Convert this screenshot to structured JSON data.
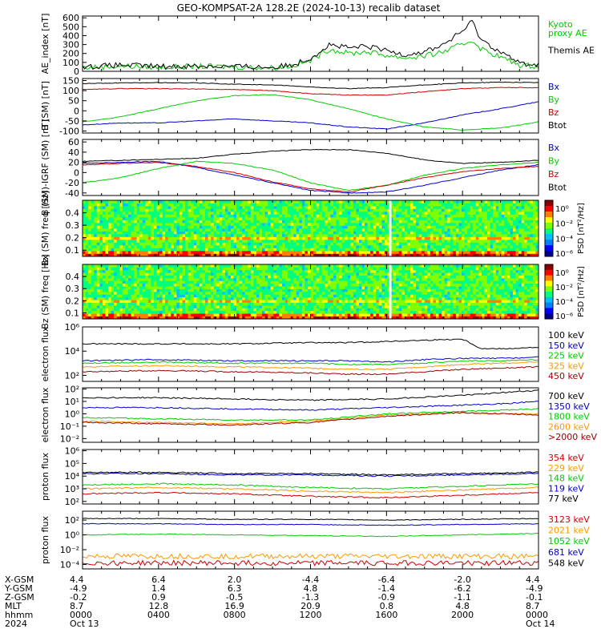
{
  "title": "GEO-KOMPSAT-2A 128.2E (2024-10-13) recalib dataset",
  "chart_data": [
    {
      "type": "line",
      "id": "ae",
      "ylabel": "AE_index [nT]",
      "yticks": [
        "0",
        "100",
        "200",
        "300",
        "400",
        "500",
        "600"
      ],
      "ylim": [
        0,
        620
      ],
      "series": [
        {
          "name": "Kyoto proxy AE",
          "color": "#00cc00",
          "label_lines": [
            "Kyoto",
            "proxy AE"
          ],
          "x": [
            0,
            2,
            4,
            6,
            8,
            10,
            11,
            12,
            13,
            14,
            15,
            16,
            17,
            18,
            19,
            20,
            20.5,
            21,
            22,
            23,
            24
          ],
          "values": [
            40,
            60,
            45,
            55,
            50,
            40,
            60,
            120,
            250,
            200,
            220,
            180,
            150,
            170,
            220,
            300,
            350,
            250,
            160,
            70,
            60
          ]
        },
        {
          "name": "Themis AE",
          "color": "#000000",
          "label_lines": [
            "Themis AE"
          ],
          "x": [
            0,
            2,
            4,
            6,
            8,
            10,
            11,
            12,
            13,
            14,
            15,
            16,
            17,
            18,
            19,
            20,
            20.5,
            21,
            22,
            23,
            24
          ],
          "values": [
            50,
            70,
            55,
            60,
            55,
            45,
            70,
            150,
            300,
            260,
            280,
            230,
            190,
            220,
            300,
            450,
            560,
            350,
            220,
            90,
            70
          ]
        }
      ]
    },
    {
      "type": "line",
      "id": "bsm",
      "ylabel": "B (SM) [nT]",
      "yticks": [
        "-100",
        "-50",
        "0",
        "50",
        "100",
        "150"
      ],
      "ylim": [
        -110,
        160
      ],
      "series": [
        {
          "name": "Bx",
          "color": "#0000cc",
          "x": [
            0,
            2,
            4,
            6,
            8,
            10,
            12,
            14,
            16,
            18,
            20,
            22,
            24
          ],
          "values": [
            -70,
            -60,
            -60,
            -50,
            -40,
            -50,
            -60,
            -80,
            -90,
            -60,
            -20,
            10,
            45
          ]
        },
        {
          "name": "By",
          "color": "#00cc00",
          "x": [
            0,
            2,
            4,
            6,
            8,
            10,
            12,
            14,
            16,
            18,
            20,
            22,
            24
          ],
          "values": [
            -55,
            -30,
            10,
            50,
            75,
            80,
            55,
            10,
            -40,
            -80,
            -95,
            -85,
            -55
          ]
        },
        {
          "name": "Bz",
          "color": "#cc0000",
          "x": [
            0,
            2,
            4,
            6,
            8,
            10,
            12,
            14,
            16,
            18,
            20,
            22,
            24
          ],
          "values": [
            105,
            110,
            110,
            108,
            105,
            100,
            85,
            78,
            78,
            95,
            110,
            115,
            115
          ]
        },
        {
          "name": "Btot",
          "color": "#000000",
          "x": [
            0,
            2,
            4,
            6,
            8,
            10,
            12,
            14,
            16,
            18,
            20,
            22,
            24
          ],
          "values": [
            135,
            138,
            140,
            138,
            132,
            128,
            118,
            110,
            115,
            128,
            138,
            142,
            140
          ]
        }
      ]
    },
    {
      "type": "line",
      "id": "dbsm",
      "ylabel": "B (SM)-IGRF (SM) [nT]",
      "yticks": [
        "-40",
        "-20",
        "0",
        "20",
        "40",
        "60"
      ],
      "ylim": [
        -45,
        65
      ],
      "series": [
        {
          "name": "Bx",
          "color": "#0000cc",
          "x": [
            0,
            2,
            4,
            6,
            8,
            10,
            12,
            14,
            16,
            18,
            20,
            22,
            24
          ],
          "values": [
            18,
            20,
            22,
            10,
            -5,
            -20,
            -35,
            -40,
            -38,
            -25,
            -10,
            5,
            15
          ]
        },
        {
          "name": "By",
          "color": "#00cc00",
          "x": [
            0,
            2,
            4,
            6,
            8,
            10,
            12,
            14,
            16,
            18,
            20,
            22,
            24
          ],
          "values": [
            -20,
            -10,
            8,
            22,
            18,
            5,
            -20,
            -35,
            -25,
            -5,
            8,
            15,
            20
          ]
        },
        {
          "name": "Bz",
          "color": "#cc0000",
          "x": [
            0,
            2,
            4,
            6,
            8,
            10,
            12,
            14,
            16,
            18,
            20,
            22,
            24
          ],
          "values": [
            15,
            18,
            20,
            12,
            0,
            -18,
            -32,
            -38,
            -25,
            -10,
            2,
            8,
            12
          ]
        },
        {
          "name": "Btot",
          "color": "#000000",
          "x": [
            0,
            2,
            4,
            6,
            8,
            10,
            12,
            14,
            16,
            18,
            20,
            22,
            24
          ],
          "values": [
            22,
            24,
            26,
            28,
            36,
            42,
            45,
            45,
            38,
            25,
            18,
            20,
            24
          ]
        }
      ]
    },
    {
      "type": "heatmap",
      "id": "bx_spec",
      "ylabel": "Bx (SM) freq [Hz]",
      "yticks": [
        "0.1",
        "0.2",
        "0.3",
        "0.4"
      ],
      "ylim": [
        0.05,
        0.5
      ],
      "colorbar_label": "PSD [nT²/Hz]",
      "colorbar_ticks": [
        "10⁰",
        "10⁻²",
        "10⁻⁴",
        "10⁻⁶"
      ],
      "gap_hour": 16.2
    },
    {
      "type": "heatmap",
      "id": "bz_spec",
      "ylabel": "Bz (SM) freq [Hz]",
      "yticks": [
        "0.1",
        "0.2",
        "0.3",
        "0.4"
      ],
      "ylim": [
        0.05,
        0.5
      ],
      "colorbar_label": "PSD [nT²/Hz]",
      "colorbar_ticks": [
        "10⁰",
        "10⁻²",
        "10⁻⁴",
        "10⁻⁶"
      ],
      "gap_hour": 16.2
    },
    {
      "type": "line",
      "id": "elec_low",
      "ylabel": "electron flux",
      "log": true,
      "yticks": [
        "10²",
        "10⁴",
        "10⁶"
      ],
      "ylim_exp": [
        1.5,
        6
      ],
      "series": [
        {
          "name": "100 keV",
          "color": "#000000",
          "x": [
            0,
            4,
            8,
            12,
            14,
            16,
            18,
            20,
            21,
            22,
            24
          ],
          "values": [
            4.6,
            4.6,
            4.6,
            4.7,
            4.7,
            4.8,
            4.9,
            5.0,
            4.2,
            4.2,
            4.3
          ]
        },
        {
          "name": "150 keV",
          "color": "#0000cc",
          "x": [
            0,
            4,
            8,
            12,
            14,
            16,
            18,
            20,
            22,
            24
          ],
          "values": [
            3.2,
            3.3,
            3.2,
            3.2,
            3.2,
            3.1,
            3.3,
            3.4,
            3.4,
            3.5
          ]
        },
        {
          "name": "225 keV",
          "color": "#00cc00",
          "x": [
            0,
            4,
            8,
            12,
            14,
            16,
            18,
            20,
            22,
            24
          ],
          "values": [
            3.0,
            3.1,
            3.0,
            3.0,
            2.9,
            2.9,
            3.0,
            3.2,
            3.2,
            3.3
          ]
        },
        {
          "name": "325 keV",
          "color": "#ff9900",
          "x": [
            0,
            4,
            8,
            12,
            14,
            16,
            18,
            20,
            22,
            24
          ],
          "values": [
            2.7,
            2.8,
            2.7,
            2.6,
            2.5,
            2.5,
            2.7,
            2.9,
            3.0,
            3.1
          ]
        },
        {
          "name": "450 keV",
          "color": "#990000",
          "x": [
            0,
            4,
            8,
            12,
            14,
            16,
            18,
            20,
            22,
            24
          ],
          "values": [
            2.3,
            2.4,
            2.3,
            2.2,
            2.1,
            2.1,
            2.3,
            2.5,
            2.6,
            2.7
          ]
        }
      ]
    },
    {
      "type": "line",
      "id": "elec_high",
      "ylabel": "electron flux",
      "log": true,
      "yticks": [
        "10⁻²",
        "10⁻¹",
        "10⁰",
        "10¹",
        "10²"
      ],
      "ylim_exp": [
        -2.3,
        2.1
      ],
      "series": [
        {
          "name": "700 keV",
          "color": "#000000",
          "x": [
            0,
            4,
            8,
            12,
            16,
            20,
            22,
            24
          ],
          "values": [
            1.3,
            1.3,
            1.2,
            1.1,
            1.2,
            1.5,
            1.7,
            1.9
          ]
        },
        {
          "name": "1350 keV",
          "color": "#0000cc",
          "x": [
            0,
            4,
            8,
            12,
            16,
            20,
            22,
            24
          ],
          "values": [
            0.5,
            0.5,
            0.4,
            0.3,
            0.5,
            0.7,
            0.8,
            1.0
          ]
        },
        {
          "name": "1800 keV",
          "color": "#00cc00",
          "x": [
            0,
            4,
            8,
            12,
            16,
            20,
            22,
            24
          ],
          "values": [
            -0.3,
            -0.4,
            -0.5,
            -0.5,
            0.0,
            0.2,
            0.3,
            0.4
          ]
        },
        {
          "name": "2600 keV",
          "color": "#ff9900",
          "x": [
            0,
            4,
            8,
            12,
            16,
            20,
            22,
            24
          ],
          "values": [
            -0.6,
            -0.7,
            -0.8,
            -0.6,
            -0.1,
            0.1,
            0.0,
            0.0
          ]
        },
        {
          "name": ">2000 keV",
          "color": "#990000",
          "x": [
            0,
            4,
            8,
            12,
            16,
            20,
            22,
            24
          ],
          "values": [
            -0.7,
            -0.8,
            -0.9,
            -0.7,
            -0.2,
            0.1,
            0.0,
            -0.1
          ]
        }
      ]
    },
    {
      "type": "line",
      "id": "prot_low",
      "ylabel": "proton flux",
      "log": true,
      "yticks": [
        "10²",
        "10³",
        "10⁴",
        "10⁵",
        "10⁶"
      ],
      "ylim_exp": [
        1.8,
        6.1
      ],
      "series": [
        {
          "name": "354 keV",
          "color": "#cc0000",
          "x": [
            0,
            4,
            8,
            12,
            16,
            20,
            24
          ],
          "values": [
            2.6,
            2.7,
            2.6,
            2.4,
            2.3,
            2.5,
            2.7
          ]
        },
        {
          "name": "229 keV",
          "color": "#ff9900",
          "x": [
            0,
            4,
            8,
            12,
            16,
            20,
            24
          ],
          "values": [
            3.0,
            3.1,
            3.0,
            2.8,
            2.7,
            2.9,
            3.1
          ]
        },
        {
          "name": "148 keV",
          "color": "#00cc00",
          "x": [
            0,
            4,
            8,
            12,
            16,
            20,
            24
          ],
          "values": [
            3.3,
            3.4,
            3.3,
            3.1,
            3.0,
            3.2,
            3.4
          ]
        },
        {
          "name": "119 keV",
          "color": "#0000cc",
          "x": [
            0,
            4,
            8,
            12,
            16,
            20,
            24
          ],
          "values": [
            4.2,
            4.2,
            4.1,
            4.1,
            4.0,
            4.1,
            4.2
          ]
        },
        {
          "name": "77 keV",
          "color": "#000000",
          "x": [
            0,
            4,
            8,
            12,
            16,
            20,
            24
          ],
          "values": [
            4.3,
            4.3,
            4.2,
            4.2,
            4.1,
            4.2,
            4.3
          ]
        }
      ]
    },
    {
      "type": "line",
      "id": "prot_high",
      "ylabel": "proton flux",
      "log": true,
      "yticks": [
        "10⁻⁴",
        "10⁻²",
        "10⁰",
        "10²"
      ],
      "ylim_exp": [
        -4.6,
        3.2
      ],
      "series": [
        {
          "name": "3123 keV",
          "color": "#cc0000",
          "x": [
            0,
            4,
            8,
            12,
            16,
            20,
            24
          ],
          "values": [
            -3.8,
            -3.8,
            -3.8,
            -3.8,
            -3.8,
            -3.8,
            -3.8
          ]
        },
        {
          "name": "2021 keV",
          "color": "#ff9900",
          "x": [
            0,
            4,
            8,
            12,
            16,
            20,
            24
          ],
          "values": [
            -2.9,
            -2.9,
            -2.9,
            -2.9,
            -2.9,
            -2.9,
            -2.9
          ]
        },
        {
          "name": "1052 keV",
          "color": "#00cc00",
          "x": [
            0,
            4,
            8,
            12,
            16,
            20,
            24
          ],
          "values": [
            0.0,
            0.1,
            0.0,
            -0.1,
            -0.2,
            0.0,
            0.2
          ]
        },
        {
          "name": "681 keV",
          "color": "#0000cc",
          "x": [
            0,
            4,
            8,
            12,
            16,
            20,
            24
          ],
          "values": [
            1.5,
            1.5,
            1.4,
            1.4,
            1.3,
            1.4,
            1.5
          ]
        },
        {
          "name": "548 keV",
          "color": "#000000",
          "x": [
            0,
            4,
            8,
            12,
            16,
            20,
            24
          ],
          "values": [
            2.2,
            2.2,
            2.1,
            2.1,
            2.0,
            2.1,
            2.2
          ]
        }
      ]
    }
  ],
  "x_axis": {
    "row_labels": [
      "X-GSM",
      "Y-GSM",
      "Z-GSM",
      "MLT",
      "hhmm",
      "2024"
    ],
    "ticks": [
      {
        "hour": 0,
        "values": [
          "4.4",
          "-4.9",
          "-0.2",
          "8.7",
          "0000",
          "Oct 13"
        ]
      },
      {
        "hour": 4,
        "values": [
          "6.4",
          "1.4",
          "0.9",
          "12.8",
          "0400",
          ""
        ]
      },
      {
        "hour": 8,
        "values": [
          "2.0",
          "6.3",
          "-0.5",
          "16.9",
          "0800",
          ""
        ]
      },
      {
        "hour": 12,
        "values": [
          "-4.4",
          "4.8",
          "-1.3",
          "20.9",
          "1200",
          ""
        ]
      },
      {
        "hour": 16,
        "values": [
          "-6.4",
          "-1.4",
          "-0.9",
          "0.8",
          "1600",
          ""
        ]
      },
      {
        "hour": 20,
        "values": [
          "-2.0",
          "-6.2",
          "-1.1",
          "4.8",
          "2000",
          ""
        ]
      },
      {
        "hour": 24,
        "values": [
          "4.4",
          "-4.9",
          "-0.1",
          "8.7",
          "0000",
          "Oct 14"
        ]
      }
    ]
  }
}
